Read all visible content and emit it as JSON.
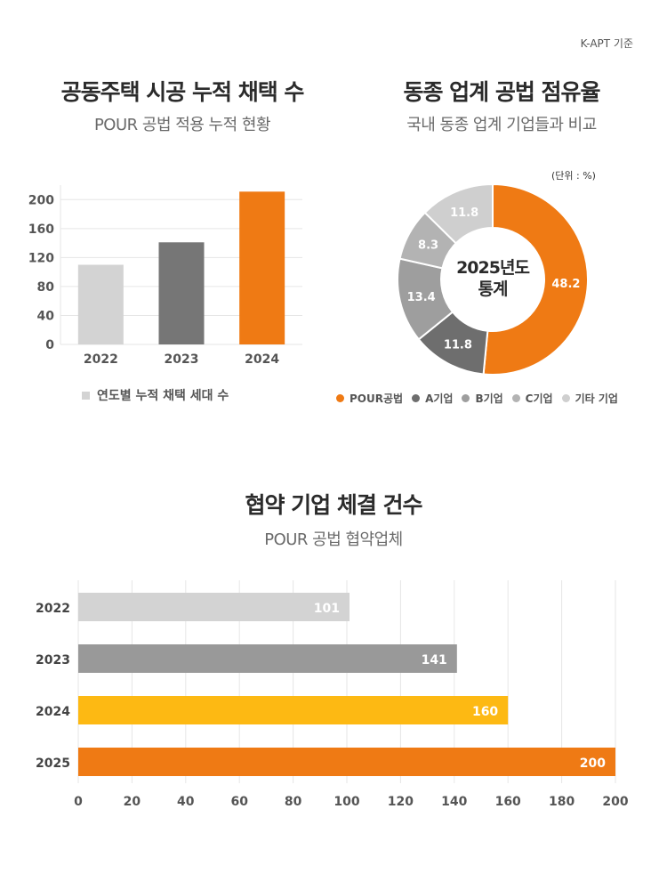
{
  "source_note": "K-APT 기준",
  "charts": {
    "cumulative": {
      "title": "공동주택 시공 누적 채택 수",
      "subtitle": "POUR 공법 적용 누적 현황",
      "legend_label": "연도별 누적 채택 세대 수",
      "legend_color": "#d3d3d3"
    },
    "share": {
      "title": "동종 업계 공법 점유율",
      "subtitle": "국내 동종 업계 기업들과 비교",
      "unit_note": "(단위 : %)",
      "center_label_line1": "2025년도",
      "center_label_line2": "통계"
    },
    "contracts": {
      "title": "협약 기업 체결 건수",
      "subtitle": "POUR 공법 협약업체"
    }
  },
  "chart_data": [
    {
      "type": "bar",
      "categories": [
        "2022",
        "2023",
        "2024"
      ],
      "series": [
        {
          "name": "연도별 누적 채택 세대 수",
          "values": [
            110,
            141,
            211
          ],
          "colors": [
            "#d3d3d3",
            "#767676",
            "#ef7a14"
          ]
        }
      ],
      "ylim": [
        0,
        220
      ],
      "yticks": [
        0,
        40,
        80,
        120,
        160,
        200
      ],
      "grid": true
    },
    {
      "type": "pie",
      "donut": true,
      "categories": [
        "POUR공법",
        "A기업",
        "B기업",
        "C기업",
        "기타 기업"
      ],
      "values": [
        48.2,
        11.8,
        13.4,
        8.3,
        11.8
      ],
      "colors": [
        "#ef7a14",
        "#6e6e6e",
        "#9e9e9e",
        "#b3b3b3",
        "#cfcfcf"
      ],
      "legend_position": "bottom"
    },
    {
      "type": "bar",
      "orientation": "horizontal",
      "categories": [
        "2022",
        "2023",
        "2024",
        "2025"
      ],
      "values": [
        101,
        141,
        160,
        200
      ],
      "colors": [
        "#d3d3d3",
        "#999999",
        "#fdb913",
        "#ef7a14"
      ],
      "xlim": [
        0,
        200
      ],
      "xticks": [
        0,
        20,
        40,
        60,
        80,
        100,
        120,
        140,
        160,
        180,
        200
      ],
      "grid": true
    }
  ]
}
